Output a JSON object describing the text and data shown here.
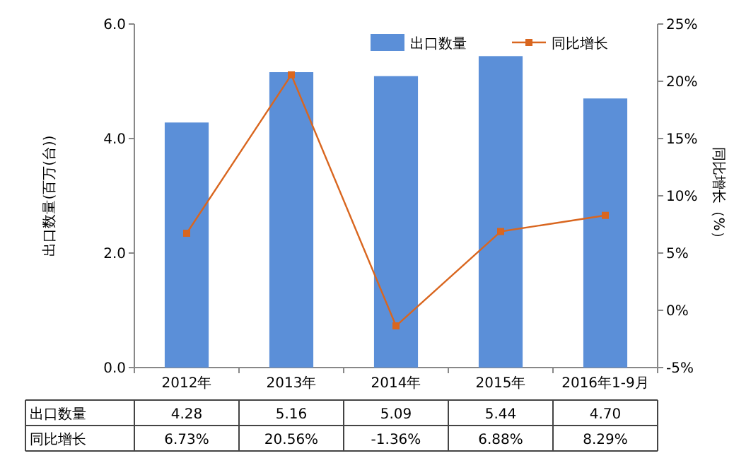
{
  "chart_data": {
    "type": "bar",
    "categories": [
      "2012年",
      "2013年",
      "2014年",
      "2015年",
      "2016年1-9月"
    ],
    "series": [
      {
        "name": "出口数量",
        "color": "#5b8fd8",
        "values": [
          4.28,
          5.16,
          5.09,
          5.44,
          4.7
        ],
        "value_labels": [
          "4.28",
          "5.16",
          "5.09",
          "5.44",
          "4.70"
        ]
      },
      {
        "name": "同比增长",
        "type": "line",
        "axis": "y2",
        "color": "#d9661f",
        "marker": "square",
        "values": [
          6.73,
          20.56,
          -1.36,
          6.88,
          8.29
        ],
        "value_labels": [
          "6.73%",
          "20.56%",
          "-1.36%",
          "6.88%",
          "8.29%"
        ]
      }
    ],
    "ylabel": "出口数量(百万(台))",
    "y2label": "同比增长（%）",
    "ylim": [
      0,
      6
    ],
    "yticks": [
      {
        "value": 0,
        "label": "0.0"
      },
      {
        "value": 2,
        "label": "2.0"
      },
      {
        "value": 4,
        "label": "4.0"
      },
      {
        "value": 6,
        "label": "6.0"
      }
    ],
    "y2lim": [
      -5,
      25
    ],
    "y2ticks": [
      {
        "value": -5,
        "label": "-5%"
      },
      {
        "value": 0,
        "label": "0%"
      },
      {
        "value": 5,
        "label": "5%"
      },
      {
        "value": 10,
        "label": "10%"
      },
      {
        "value": 15,
        "label": "15%"
      },
      {
        "value": 20,
        "label": "20%"
      },
      {
        "value": 25,
        "label": "25%"
      }
    ],
    "legend": "top right",
    "grid": false
  }
}
